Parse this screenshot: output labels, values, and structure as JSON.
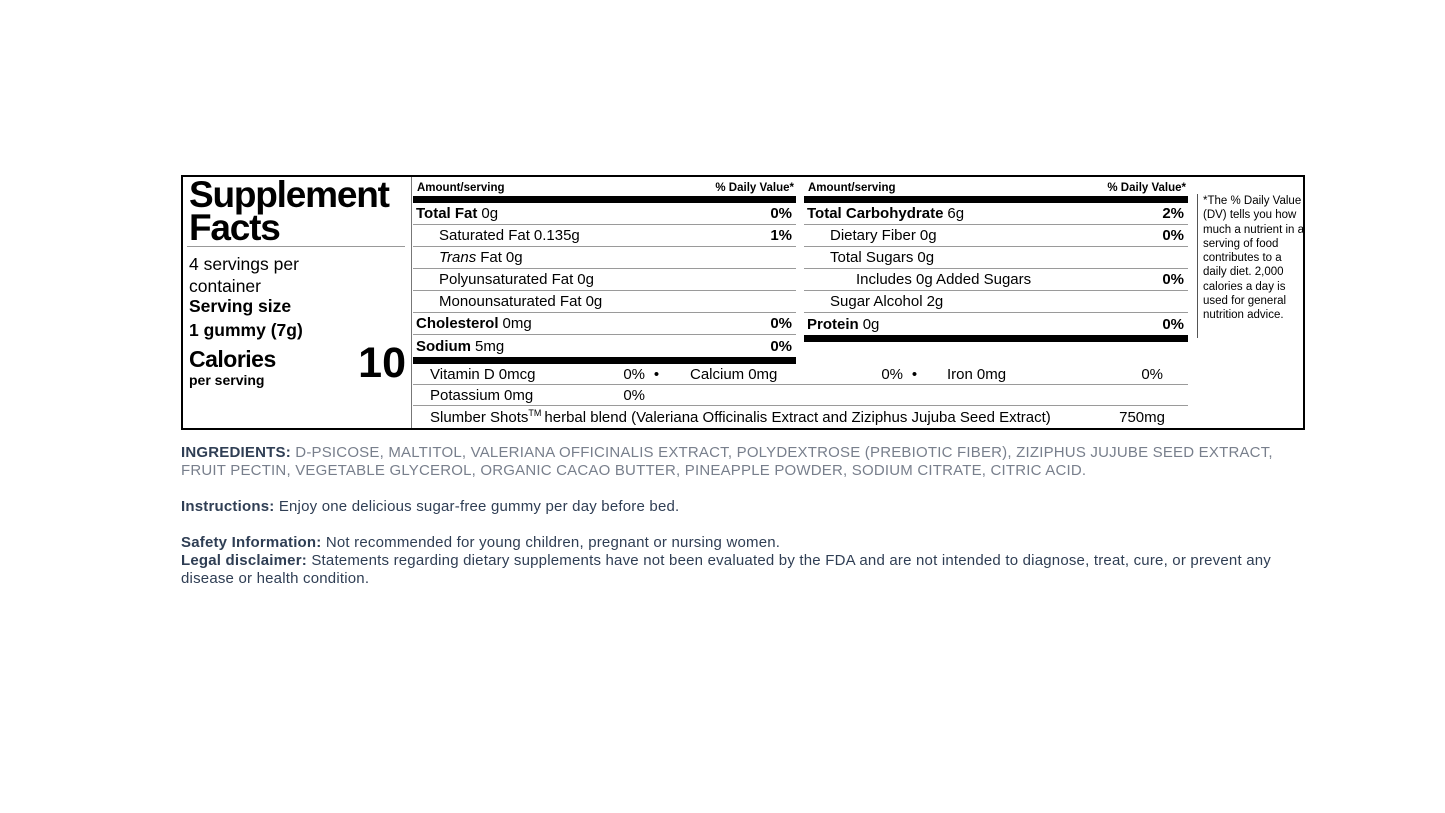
{
  "colors": {
    "label_text": "#000000",
    "hairline": "#9a9a9a",
    "info_navy": "#2f3e54",
    "ingredients_gray": "#787f8c"
  },
  "label": {
    "title_line1": "Supplement",
    "title_line2": "Facts",
    "servings_per_container": "4 servings per container",
    "serving_size_label": "Serving size",
    "serving_size_value": "1 gummy (7g)",
    "calories_label": "Calories",
    "calories_sublabel": "per serving",
    "calories_value": "10",
    "col_header_amount": "Amount/serving",
    "col_header_dv": "% Daily Value*",
    "mid_rows": [
      {
        "name": "Total Fat",
        "amount": "0g",
        "dv": "0%",
        "bold": true,
        "indent": 0
      },
      {
        "name": "Saturated Fat",
        "amount": "0.135g",
        "dv": "1%",
        "bold": false,
        "indent": 1
      },
      {
        "italic": "Trans",
        "name": "Fat",
        "amount": "0g",
        "dv": "",
        "bold": false,
        "indent": 1
      },
      {
        "name": "Polyunsaturated Fat",
        "amount": "0g",
        "dv": "",
        "bold": false,
        "indent": 1
      },
      {
        "name": "Monounsaturated Fat",
        "amount": "0g",
        "dv": "",
        "bold": false,
        "indent": 1
      },
      {
        "name": "Cholesterol",
        "amount": "0mg",
        "dv": "0%",
        "bold": true,
        "indent": 0
      },
      {
        "name": "Sodium",
        "amount": "5mg",
        "dv": "0%",
        "bold": true,
        "indent": 0
      }
    ],
    "right_rows": [
      {
        "name": "Total Carbohydrate",
        "amount": "6g",
        "dv": "2%",
        "bold": true,
        "indent": 0
      },
      {
        "name": "Dietary Fiber",
        "amount": "0g",
        "dv": "0%",
        "bold": false,
        "indent": 1
      },
      {
        "name": "Total Sugars",
        "amount": "0g",
        "dv": "",
        "bold": false,
        "indent": 1
      },
      {
        "name": "Includes 0g Added Sugars",
        "amount": "",
        "dv": "0%",
        "bold": false,
        "indent": 2
      },
      {
        "name": "Sugar Alcohol",
        "amount": "2g",
        "dv": "",
        "bold": false,
        "indent": 1
      },
      {
        "name": "Protein",
        "amount": "0g",
        "dv": "0%",
        "bold": true,
        "indent": 0
      }
    ],
    "micros": [
      {
        "name": "Vitamin D",
        "amount": "0mcg",
        "dv": "0%"
      },
      {
        "name": "Calcium",
        "amount": "0mg",
        "dv": "0%"
      },
      {
        "name": "Iron",
        "amount": "0mg",
        "dv": "0%"
      }
    ],
    "potassium": {
      "name": "Potassium",
      "amount": "0mg",
      "dv": "0%"
    },
    "blend": {
      "brand": "Slumber Shots",
      "tm": "TM",
      "rest": "herbal blend (Valeriana Officinalis Extract and Ziziphus Jujuba Seed Extract)",
      "amount": "750mg"
    },
    "footnote": "*The % Daily Value (DV) tells you how much a nutrient in a serving of food contributes to a daily diet. 2,000 calories a day is used for general nutrition advice."
  },
  "info": {
    "ingredients_label": "INGREDIENTS:",
    "ingredients_text": "D-PSICOSE, MALTITOL, VALERIANA OFFICINALIS EXTRACT, POLYDEXTROSE (PREBIOTIC FIBER), ZIZIPHUS JUJUBE SEED EXTRACT, FRUIT PECTIN, VEGETABLE GLYCEROL, ORGANIC CACAO BUTTER, PINEAPPLE POWDER, SODIUM CITRATE, CITRIC ACID.",
    "instructions_label": "Instructions:",
    "instructions_text": "Enjoy one delicious sugar-free gummy per day before bed.",
    "safety_label": "Safety Information:",
    "safety_text": "Not recommended for young children, pregnant or nursing women.",
    "legal_label": "Legal disclaimer:",
    "legal_text": "Statements regarding dietary supplements have not been evaluated by the FDA and are not intended to diagnose, treat, cure, or prevent any disease or health condition."
  }
}
